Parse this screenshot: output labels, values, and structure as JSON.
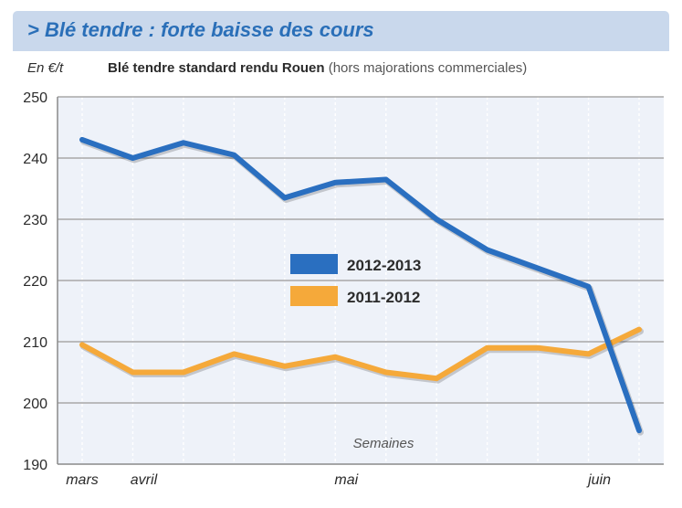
{
  "banner": {
    "title": "> Blé tendre : forte baisse des cours"
  },
  "chart_data": {
    "type": "line",
    "unit_label": "En €/t",
    "title": "Blé tendre standard rendu Rouen",
    "subtitle": "(hors majorations commerciales)",
    "xlabel": "Semaines",
    "ylim": [
      190,
      250
    ],
    "yticks": [
      190,
      200,
      210,
      220,
      230,
      240,
      250
    ],
    "x_tick_labels": [
      {
        "label": "mars",
        "week": 0
      },
      {
        "label": "avril",
        "week": 1
      },
      {
        "label": "mai",
        "week": 5
      },
      {
        "label": "juin",
        "week": 10
      }
    ],
    "weeks": 11,
    "grid": true,
    "legend_placement": "center",
    "series": [
      {
        "name": "2012-2013",
        "color": "#2a6fc0",
        "values": [
          243,
          240,
          242.5,
          240.5,
          233.5,
          236,
          236.5,
          230,
          225,
          222,
          219,
          195.5
        ]
      },
      {
        "name": "2011-2012",
        "color": "#f5a93a",
        "values": [
          209.5,
          205,
          205,
          208,
          206,
          207.5,
          205,
          204,
          209,
          209,
          208,
          212
        ]
      }
    ]
  }
}
